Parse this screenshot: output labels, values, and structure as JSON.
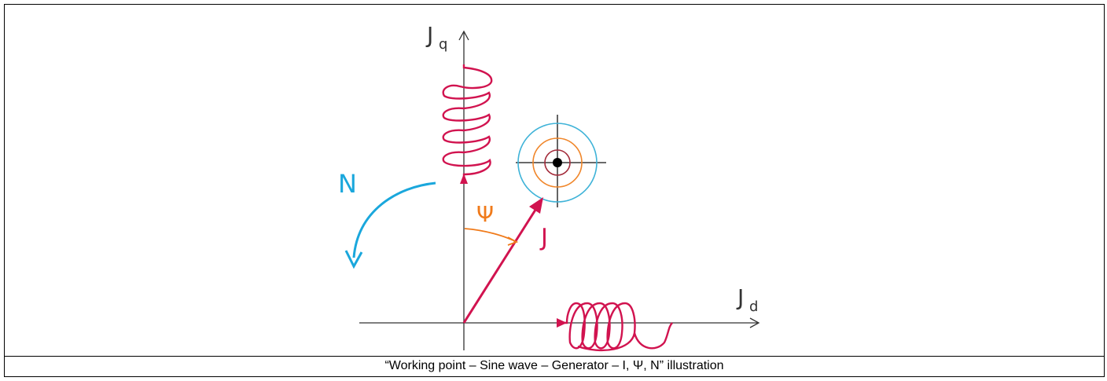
{
  "diagram": {
    "axis_q_label": "J",
    "axis_q_sub": "q",
    "axis_d_label": "J",
    "axis_d_sub": "d",
    "vector_label": "J",
    "angle_label": "Ψ",
    "rotation_label": "N",
    "colors": {
      "current_vector": "#d1134f",
      "angle": "#f07a1a",
      "rotation": "#1aa7dc",
      "axis": "#333333",
      "target_outer": "#3fb3d8",
      "target_middle": "#f0862a",
      "target_inner": "#a32b3a"
    }
  },
  "caption": "“Working point – Sine wave – Generator – I, Ψ, N” illustration"
}
